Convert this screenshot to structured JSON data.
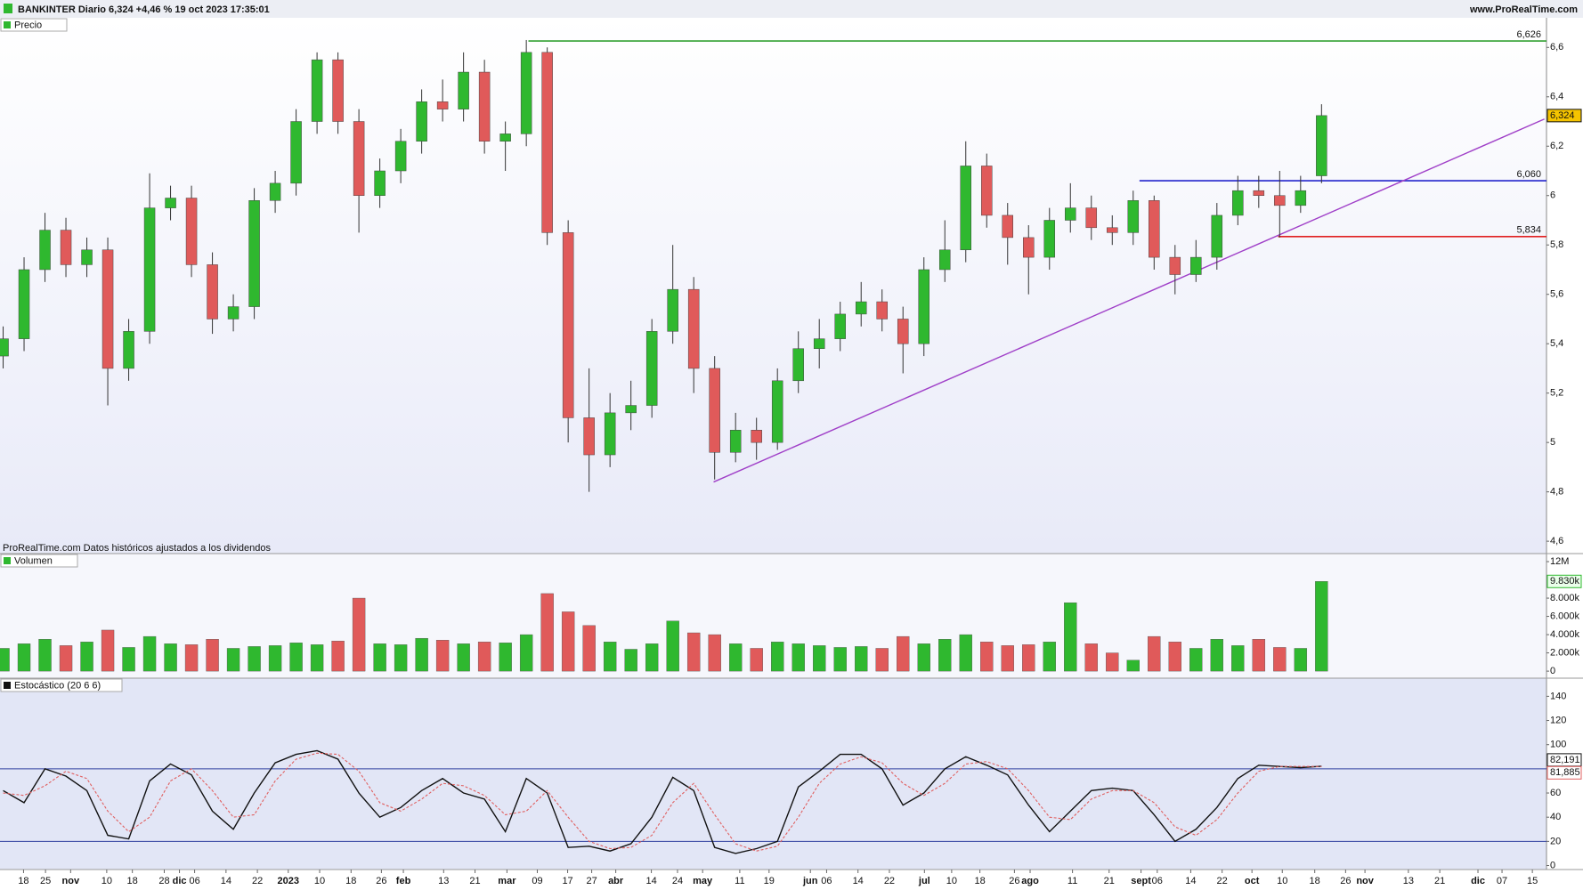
{
  "header": {
    "title": "BANKINTER Diario 6,324 +4,46 % 19 oct 2023 17:35:01",
    "site": "www.ProRealTime.com"
  },
  "chart_data": [
    {
      "type": "candlestick",
      "title": "Precio",
      "footnote": "ProRealTime.com  Datos históricos ajustados a los dividendos",
      "x": [
        0,
        4,
        8,
        12,
        16,
        20,
        24,
        28,
        32,
        36,
        40,
        44,
        48,
        52,
        56,
        60,
        64,
        68,
        72,
        76,
        80,
        84,
        88,
        92,
        96,
        100,
        104,
        108,
        112,
        116,
        120,
        124,
        128,
        132,
        136,
        140,
        144,
        148,
        152,
        156,
        160,
        164,
        168,
        172,
        176,
        180,
        184,
        188,
        192,
        196,
        200,
        204,
        208,
        212,
        216,
        220,
        224,
        228,
        232,
        236,
        240,
        244,
        248,
        252
      ],
      "open": [
        5.35,
        5.42,
        5.7,
        5.86,
        5.72,
        5.78,
        5.3,
        5.45,
        5.95,
        5.99,
        5.72,
        5.5,
        5.55,
        5.98,
        6.05,
        6.3,
        6.55,
        6.3,
        6.0,
        6.1,
        6.22,
        6.38,
        6.35,
        6.5,
        6.22,
        6.25,
        6.58,
        5.85,
        5.1,
        4.95,
        5.12,
        5.15,
        5.45,
        5.62,
        5.3,
        4.96,
        5.05,
        5.0,
        5.25,
        5.38,
        5.42,
        5.52,
        5.57,
        5.5,
        5.4,
        5.7,
        5.78,
        6.12,
        5.92,
        5.83,
        5.75,
        5.9,
        5.95,
        5.87,
        5.85,
        5.98,
        5.75,
        5.68,
        5.75,
        5.92,
        6.02,
        6.0,
        5.96,
        6.08
      ],
      "high": [
        5.47,
        5.75,
        5.93,
        5.91,
        5.83,
        5.83,
        5.5,
        6.09,
        6.04,
        6.04,
        5.77,
        5.6,
        6.03,
        6.1,
        6.35,
        6.58,
        6.58,
        6.35,
        6.15,
        6.27,
        6.43,
        6.47,
        6.58,
        6.55,
        6.3,
        6.63,
        6.6,
        5.9,
        5.3,
        5.2,
        5.25,
        5.5,
        5.8,
        5.67,
        5.35,
        5.12,
        5.1,
        5.3,
        5.45,
        5.5,
        5.57,
        5.65,
        5.62,
        5.55,
        5.75,
        5.9,
        6.22,
        6.17,
        5.97,
        5.88,
        5.95,
        6.05,
        6.0,
        5.92,
        6.02,
        6.0,
        5.8,
        5.82,
        5.97,
        6.08,
        6.08,
        6.1,
        6.08,
        6.37
      ],
      "low": [
        5.3,
        5.37,
        5.65,
        5.67,
        5.67,
        5.15,
        5.25,
        5.4,
        5.9,
        5.67,
        5.44,
        5.45,
        5.5,
        5.93,
        6.0,
        6.25,
        6.25,
        5.85,
        5.95,
        6.05,
        6.17,
        6.3,
        6.3,
        6.17,
        6.1,
        6.2,
        5.8,
        5.0,
        4.8,
        4.9,
        5.05,
        5.1,
        5.4,
        5.2,
        4.85,
        4.92,
        4.93,
        4.97,
        5.2,
        5.3,
        5.37,
        5.47,
        5.45,
        5.28,
        5.35,
        5.65,
        5.73,
        5.87,
        5.72,
        5.6,
        5.7,
        5.85,
        5.82,
        5.8,
        5.8,
        5.7,
        5.6,
        5.65,
        5.7,
        5.88,
        5.95,
        5.83,
        5.93,
        6.05
      ],
      "close": [
        5.42,
        5.7,
        5.86,
        5.72,
        5.78,
        5.3,
        5.45,
        5.95,
        5.99,
        5.72,
        5.5,
        5.55,
        5.98,
        6.05,
        6.3,
        6.55,
        6.3,
        6.0,
        6.1,
        6.22,
        6.38,
        6.35,
        6.5,
        6.22,
        6.25,
        6.58,
        5.85,
        5.1,
        4.95,
        5.12,
        5.15,
        5.45,
        5.62,
        5.3,
        4.96,
        5.05,
        5.0,
        5.25,
        5.38,
        5.42,
        5.52,
        5.57,
        5.5,
        5.4,
        5.7,
        5.78,
        6.12,
        5.92,
        5.83,
        5.75,
        5.9,
        5.95,
        5.87,
        5.85,
        5.98,
        5.75,
        5.68,
        5.75,
        5.92,
        6.02,
        6.0,
        5.96,
        6.02,
        6.324
      ],
      "up_color": "#2fb82f",
      "down_color": "#e05a5a",
      "xlim": [
        -0.6,
        295
      ],
      "ylim": [
        4.55,
        6.72
      ],
      "yticks": [
        {
          "value": 6.6,
          "label": "6,6"
        },
        {
          "value": 6.4,
          "label": "6,4"
        },
        {
          "value": 6.2,
          "label": "6,2"
        },
        6,
        {
          "value": 5.8,
          "label": "5,8"
        },
        {
          "value": 5.6,
          "label": "5,6"
        },
        {
          "value": 5.4,
          "label": "5,4"
        },
        {
          "value": 5.2,
          "label": "5,2"
        },
        5,
        {
          "value": 4.8,
          "label": "4,8"
        },
        {
          "value": 4.6,
          "label": "4,6"
        }
      ],
      "levels": [
        {
          "value": 6.626,
          "label": "6,626",
          "start": 100.4,
          "color": "#33a033"
        },
        {
          "value": 6.06,
          "label": "6,060",
          "start": 217.2,
          "color": "#2222cc"
        },
        {
          "value": 5.834,
          "label": "5,834",
          "start": 243.7,
          "color": "#e02020"
        }
      ],
      "trendline": {
        "x": [
          135.8,
          294.6
        ],
        "y": [
          4.84,
          6.31
        ],
        "color": "#a040c8"
      },
      "last": {
        "value": 6.324,
        "label": "6,324"
      }
    },
    {
      "type": "bar",
      "title": "Volumen",
      "values": [
        2500000,
        3000000,
        3500000,
        2800000,
        3200000,
        4500000,
        2600000,
        3800000,
        3000000,
        2900000,
        3500000,
        2500000,
        2700000,
        2800000,
        3100000,
        2900000,
        3300000,
        8000000,
        3000000,
        2900000,
        3600000,
        3400000,
        3000000,
        3200000,
        3100000,
        4000000,
        8500000,
        6500000,
        5000000,
        3200000,
        2400000,
        3000000,
        5500000,
        4200000,
        4000000,
        3000000,
        2500000,
        3200000,
        3000000,
        2800000,
        2600000,
        2700000,
        2500000,
        3800000,
        3000000,
        3500000,
        4000000,
        3200000,
        2800000,
        2900000,
        3200000,
        7500000,
        3000000,
        2000000,
        1200000,
        3800000,
        3200000,
        2500000,
        3500000,
        2800000,
        3500000,
        2600000,
        2500000,
        9830000
      ],
      "xlim": [
        -0.6,
        295
      ],
      "ylim": [
        -770000,
        12880000
      ],
      "yticks": [
        {
          "value": 12000000,
          "label": "12M"
        },
        {
          "value": 8000000,
          "label": "8.000k"
        },
        {
          "value": 6000000,
          "label": "6.000k"
        },
        {
          "value": 4000000,
          "label": "4.000k"
        },
        {
          "value": 2000000,
          "label": "2.000k"
        },
        0
      ],
      "last": {
        "value": 9830000,
        "label": "9.830k"
      }
    },
    {
      "type": "line",
      "title": "Estocástico (20 6 6)",
      "series": [
        {
          "color": "#111111",
          "dash": false,
          "values": [
            62,
            52,
            80,
            74,
            62,
            25,
            22,
            70,
            84,
            75,
            45,
            30,
            60,
            85,
            92,
            95,
            88,
            60,
            40,
            48,
            62,
            72,
            60,
            55,
            28,
            72,
            60,
            15,
            16,
            12,
            18,
            40,
            73,
            62,
            15,
            10,
            14,
            20,
            65,
            78,
            92,
            92,
            80,
            50,
            60,
            80,
            90,
            83,
            75,
            50,
            28,
            45,
            62,
            64,
            62,
            42,
            20,
            30,
            48,
            72,
            83,
            82,
            81,
            82.191
          ]
        },
        {
          "color": "#e06060",
          "dash": true,
          "values": [
            60,
            58,
            66,
            78,
            72,
            45,
            28,
            40,
            70,
            80,
            62,
            40,
            42,
            70,
            88,
            93,
            92,
            78,
            52,
            45,
            55,
            68,
            66,
            58,
            42,
            45,
            62,
            40,
            20,
            14,
            15,
            25,
            52,
            68,
            42,
            18,
            12,
            16,
            40,
            68,
            84,
            90,
            85,
            68,
            58,
            68,
            84,
            86,
            80,
            62,
            40,
            38,
            55,
            62,
            62,
            52,
            32,
            25,
            38,
            60,
            78,
            82,
            82,
            81.885
          ]
        }
      ],
      "last": [
        {
          "value": 82.191,
          "label": "82,191"
        },
        {
          "value": 81.885,
          "label": "81,885"
        }
      ],
      "levels": [
        80,
        20
      ],
      "level_color": "#3040a0",
      "xlim": [
        -0.6,
        295
      ],
      "ylim": [
        -3.3,
        155
      ],
      "yticks": [
        140,
        120,
        100,
        80,
        60,
        40,
        20,
        0
      ],
      "xticks": [
        {
          "value": 3.9,
          "label": "18"
        },
        {
          "value": 8.1,
          "label": "25"
        },
        {
          "value": 12.9,
          "label": "nov"
        },
        {
          "value": 19.8,
          "label": "10"
        },
        {
          "value": 24.7,
          "label": "18"
        },
        {
          "value": 30.8,
          "label": "28"
        },
        {
          "value": 33.7,
          "label": "dic"
        },
        {
          "value": 36.6,
          "label": "06"
        },
        {
          "value": 42.6,
          "label": "14"
        },
        {
          "value": 48.6,
          "label": "22"
        },
        {
          "value": 54.5,
          "label": "2023"
        },
        {
          "value": 60.5,
          "label": "10"
        },
        {
          "value": 66.5,
          "label": "18"
        },
        {
          "value": 72.3,
          "label": "26"
        },
        {
          "value": 76.5,
          "label": "feb"
        },
        {
          "value": 84.2,
          "label": "13"
        },
        {
          "value": 90.2,
          "label": "21"
        },
        {
          "value": 96.3,
          "label": "mar"
        },
        {
          "value": 102.1,
          "label": "09"
        },
        {
          "value": 107.9,
          "label": "17"
        },
        {
          "value": 112.5,
          "label": "27"
        },
        {
          "value": 117.1,
          "label": "abr"
        },
        {
          "value": 123.9,
          "label": "14"
        },
        {
          "value": 128.9,
          "label": "24"
        },
        {
          "value": 133.7,
          "label": "may"
        },
        {
          "value": 140.8,
          "label": "11"
        },
        {
          "value": 146.4,
          "label": "19"
        },
        {
          "value": 154.3,
          "label": "jun"
        },
        {
          "value": 157.4,
          "label": "06"
        },
        {
          "value": 163.4,
          "label": "14"
        },
        {
          "value": 169.4,
          "label": "22"
        },
        {
          "value": 176.1,
          "label": "jul"
        },
        {
          "value": 181.3,
          "label": "10"
        },
        {
          "value": 186.7,
          "label": "18"
        },
        {
          "value": 193.3,
          "label": "26"
        },
        {
          "value": 196.3,
          "label": "ago"
        },
        {
          "value": 204.4,
          "label": "11"
        },
        {
          "value": 211.4,
          "label": "21"
        },
        {
          "value": 217.5,
          "label": "sept"
        },
        {
          "value": 220.6,
          "label": "06"
        },
        {
          "value": 227,
          "label": "14"
        },
        {
          "value": 233,
          "label": "22"
        },
        {
          "value": 238.7,
          "label": "oct"
        },
        {
          "value": 244.5,
          "label": "10"
        },
        {
          "value": 250.7,
          "label": "18"
        },
        {
          "value": 256.6,
          "label": "26"
        },
        {
          "value": 260.3,
          "label": "nov"
        },
        {
          "value": 268.6,
          "label": "13"
        },
        {
          "value": 274.6,
          "label": "21"
        },
        {
          "value": 281.9,
          "label": "dic"
        },
        {
          "value": 286.5,
          "label": "07"
        },
        {
          "value": 292.3,
          "label": "15"
        }
      ]
    }
  ]
}
